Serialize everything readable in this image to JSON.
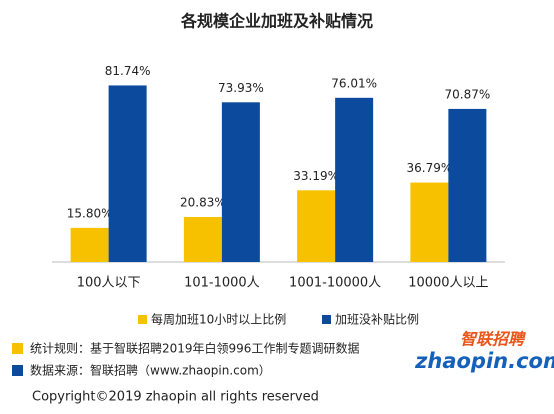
{
  "chart_data": {
    "type": "bar",
    "title": "各规模企业加班及补贴情况",
    "categories": [
      "100人以下",
      "101-1000人",
      "1001-10000人",
      "10000人以上"
    ],
    "series": [
      {
        "name": "每周加班10小时以上比例",
        "color": "#f8c100",
        "values": [
          15.8,
          20.83,
          33.19,
          36.79
        ],
        "value_labels": [
          "15.80%",
          "20.83%",
          "33.19%",
          "36.79%"
        ]
      },
      {
        "name": "加班没补贴比例",
        "color": "#0b4a9c",
        "values": [
          81.74,
          73.93,
          76.01,
          70.87
        ],
        "value_labels": [
          "81.74%",
          "73.93%",
          "76.01%",
          "70.87%"
        ]
      }
    ],
    "ylim": [
      0,
      100
    ],
    "legend": "bottom"
  },
  "footer": {
    "rule": "统计规则：基于智联招聘2019年白领996工作制专题调研数据",
    "source": "数据来源：智联招聘（www.zhaopin.com）",
    "logo_cn": "智联招聘",
    "logo_en": "zhaopin.com",
    "copyright": "Copyright©2019 zhaopin all rights reserved"
  }
}
